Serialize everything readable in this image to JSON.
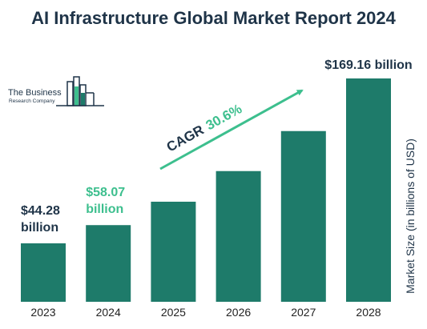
{
  "title": "AI Infrastructure Global Market Report 2024",
  "logo": {
    "line1": "The Business",
    "line2": "Research Company"
  },
  "colors": {
    "bar": "#1e7b6a",
    "accent": "#3dbf8e",
    "text": "#1f3448"
  },
  "cagr": {
    "label": "CAGR",
    "value": "30.6%"
  },
  "chart_data": {
    "type": "bar",
    "categories": [
      "2023",
      "2024",
      "2025",
      "2026",
      "2027",
      "2028"
    ],
    "values": [
      44.28,
      58.07,
      75.8,
      99.0,
      129.3,
      169.16
    ],
    "ylabel": "Market Size (in billions of USD)",
    "ylim": [
      0,
      169.16
    ],
    "grid": false,
    "annotations": [
      {
        "category": "2023",
        "line1": "$44.28",
        "line2": "billion",
        "color": "#1f3448"
      },
      {
        "category": "2024",
        "line1": "$58.07",
        "line2": "billion",
        "color": "#3dbf8e"
      },
      {
        "category": "2028",
        "line1": "$169.16 billion",
        "line2": "",
        "color": "#1f3448"
      }
    ]
  }
}
